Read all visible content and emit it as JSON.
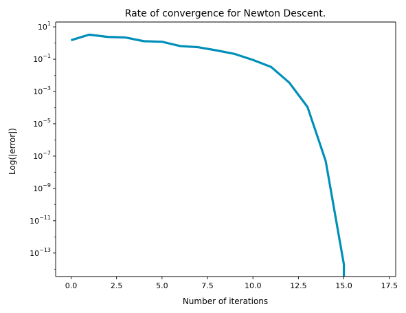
{
  "chart_data": {
    "type": "line",
    "title": "Rate of convergence for Newton Descent.",
    "xlabel": "Number of iterations",
    "ylabel": "Log(|error|)",
    "x_scale": "linear",
    "y_scale": "log",
    "xlim": [
      -0.85,
      17.85
    ],
    "ylim": [
      3.5e-15,
      20
    ],
    "x_ticks": [
      0,
      2.5,
      5,
      7.5,
      10,
      12.5,
      15,
      17.5
    ],
    "x_tick_labels": [
      "0.0",
      "2.5",
      "5.0",
      "7.5",
      "10.0",
      "12.5",
      "15.0",
      "17.5"
    ],
    "y_tick_exponents": [
      1,
      -1,
      -3,
      -5,
      -7,
      -9,
      -11,
      -13
    ],
    "grid": false,
    "line_color": "#008fb8",
    "series": [
      {
        "x": [
          0,
          1,
          2,
          3,
          4,
          5,
          6,
          7,
          8,
          9,
          10,
          11,
          12,
          13,
          14,
          15,
          15
        ],
        "y": [
          1.5,
          3.3,
          2.4,
          2.2,
          1.3,
          1.2,
          0.65,
          0.55,
          0.35,
          0.21,
          0.09,
          0.033,
          0.0035,
          0.00011,
          5e-08,
          2e-14,
          3e-15
        ]
      }
    ]
  }
}
